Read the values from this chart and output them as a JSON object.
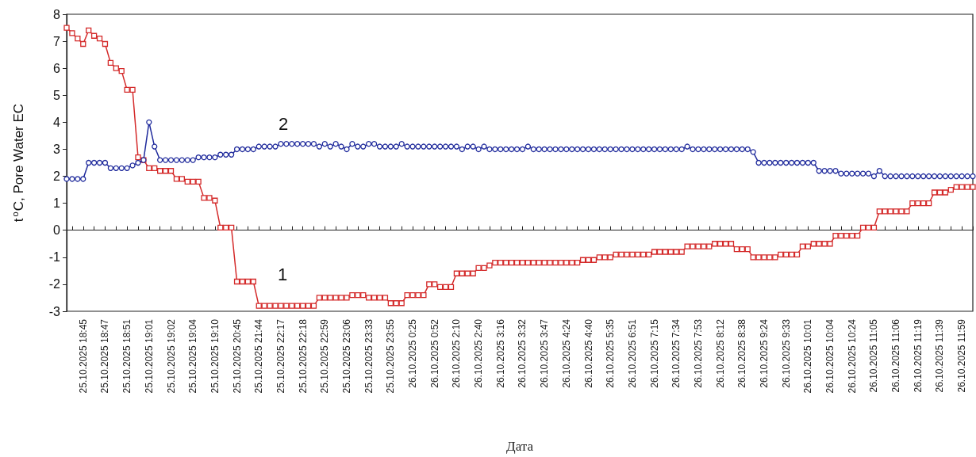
{
  "chart_data": {
    "type": "line",
    "xlabel": "Дата",
    "ylabel": "t$^{o}$C, Pore Water EC",
    "categories": [
      null,
      null,
      null,
      "25.10.2025 18:45",
      null,
      null,
      null,
      "25.10.2025 18:47",
      null,
      null,
      null,
      "25.10.2025 18:51",
      null,
      null,
      null,
      "25.10.2025 19:01",
      null,
      null,
      null,
      "25.10.2025 19:02",
      null,
      null,
      null,
      "25.10.2025 19:04",
      null,
      null,
      null,
      "25.10.2025 19:10",
      null,
      null,
      null,
      "25.10.2025 20:45",
      null,
      null,
      null,
      "25.10.2025 21:44",
      null,
      null,
      null,
      "25.10.2025 22:17",
      null,
      null,
      null,
      "25.10.2025 22:18",
      null,
      null,
      null,
      "25.10.2025 22:59",
      null,
      null,
      null,
      "25.10.2025 23:06",
      null,
      null,
      null,
      "25.10.2025 23:33",
      null,
      null,
      null,
      "25.10.2025 23:55",
      null,
      null,
      null,
      "26.10.2025 0:25",
      null,
      null,
      null,
      "26.10.2025 0:52",
      null,
      null,
      null,
      "26.10.2025 2:10",
      null,
      null,
      null,
      "26.10.2025 2:40",
      null,
      null,
      null,
      "26.10.2025 3:16",
      null,
      null,
      null,
      "26.10.2025 3:32",
      null,
      null,
      null,
      "26.10.2025 3:47",
      null,
      null,
      null,
      "26.10.2025 4:24",
      null,
      null,
      null,
      "26.10.2025 4:40",
      null,
      null,
      null,
      "26.10.2025 5:35",
      null,
      null,
      null,
      "26.10.2025 6:51",
      null,
      null,
      null,
      "26.10.2025 7:15",
      null,
      null,
      null,
      "26.10.2025 7:34",
      null,
      null,
      null,
      "26.10.2025 7:53",
      null,
      null,
      null,
      "26.10.2025 8:12",
      null,
      null,
      null,
      "26.10.2025 8:38",
      null,
      null,
      null,
      "26.10.2025 9:24",
      null,
      null,
      null,
      "26.10.2025 9:33",
      null,
      null,
      null,
      "26.10.2025 10:01",
      null,
      null,
      null,
      "26.10.2025 10:04",
      null,
      null,
      null,
      "26.10.2025 10:24",
      null,
      null,
      null,
      "26.10.2025 11:05",
      null,
      null,
      null,
      "26.10.2025 11:06",
      null,
      null,
      null,
      "26.10.2025 11:19",
      null,
      null,
      null,
      "26.10.2025 11:39",
      null,
      null,
      null,
      "26.10.2025 11:59",
      null,
      null
    ],
    "series": [
      {
        "color": "#d42a2a",
        "marker": "square",
        "values": [
          7.5,
          7.3,
          7.1,
          6.9,
          7.4,
          7.2,
          7.1,
          6.9,
          6.2,
          6.0,
          5.9,
          5.2,
          5.2,
          2.7,
          2.6,
          2.3,
          2.3,
          2.2,
          2.2,
          2.2,
          1.9,
          1.9,
          1.8,
          1.8,
          1.8,
          1.2,
          1.2,
          1.1,
          0.1,
          0.1,
          0.1,
          -1.9,
          -1.9,
          -1.9,
          -1.9,
          -2.8,
          -2.8,
          -2.8,
          -2.8,
          -2.8,
          -2.8,
          -2.8,
          -2.8,
          -2.8,
          -2.8,
          -2.8,
          -2.5,
          -2.5,
          -2.5,
          -2.5,
          -2.5,
          -2.5,
          -2.4,
          -2.4,
          -2.4,
          -2.5,
          -2.5,
          -2.5,
          -2.5,
          -2.7,
          -2.7,
          -2.7,
          -2.4,
          -2.4,
          -2.4,
          -2.4,
          -2.0,
          -2.0,
          -2.1,
          -2.1,
          -2.1,
          -1.6,
          -1.6,
          -1.6,
          -1.6,
          -1.4,
          -1.4,
          -1.3,
          -1.2,
          -1.2,
          -1.2,
          -1.2,
          -1.2,
          -1.2,
          -1.2,
          -1.2,
          -1.2,
          -1.2,
          -1.2,
          -1.2,
          -1.2,
          -1.2,
          -1.2,
          -1.2,
          -1.1,
          -1.1,
          -1.1,
          -1.0,
          -1.0,
          -1.0,
          -0.9,
          -0.9,
          -0.9,
          -0.9,
          -0.9,
          -0.9,
          -0.9,
          -0.8,
          -0.8,
          -0.8,
          -0.8,
          -0.8,
          -0.8,
          -0.6,
          -0.6,
          -0.6,
          -0.6,
          -0.6,
          -0.5,
          -0.5,
          -0.5,
          -0.5,
          -0.7,
          -0.7,
          -0.7,
          -1.0,
          -1.0,
          -1.0,
          -1.0,
          -1.0,
          -0.9,
          -0.9,
          -0.9,
          -0.9,
          -0.6,
          -0.6,
          -0.5,
          -0.5,
          -0.5,
          -0.5,
          -0.2,
          -0.2,
          -0.2,
          -0.2,
          -0.2,
          0.1,
          0.1,
          0.1,
          0.7,
          0.7,
          0.7,
          0.7,
          0.7,
          0.7,
          1.0,
          1.0,
          1.0,
          1.0,
          1.4,
          1.4,
          1.4,
          1.5,
          1.6,
          1.6,
          1.6,
          1.6
        ]
      },
      {
        "color": "#1f2a9c",
        "marker": "circle",
        "values": [
          1.9,
          1.9,
          1.9,
          1.9,
          2.5,
          2.5,
          2.5,
          2.5,
          2.3,
          2.3,
          2.3,
          2.3,
          2.4,
          2.5,
          2.6,
          4.0,
          3.1,
          2.6,
          2.6,
          2.6,
          2.6,
          2.6,
          2.6,
          2.6,
          2.7,
          2.7,
          2.7,
          2.7,
          2.8,
          2.8,
          2.8,
          3.0,
          3.0,
          3.0,
          3.0,
          3.1,
          3.1,
          3.1,
          3.1,
          3.2,
          3.2,
          3.2,
          3.2,
          3.2,
          3.2,
          3.2,
          3.1,
          3.2,
          3.1,
          3.2,
          3.1,
          3.0,
          3.2,
          3.1,
          3.1,
          3.2,
          3.2,
          3.1,
          3.1,
          3.1,
          3.1,
          3.2,
          3.1,
          3.1,
          3.1,
          3.1,
          3.1,
          3.1,
          3.1,
          3.1,
          3.1,
          3.1,
          3.0,
          3.1,
          3.1,
          3.0,
          3.1,
          3.0,
          3.0,
          3.0,
          3.0,
          3.0,
          3.0,
          3.0,
          3.1,
          3.0,
          3.0,
          3.0,
          3.0,
          3.0,
          3.0,
          3.0,
          3.0,
          3.0,
          3.0,
          3.0,
          3.0,
          3.0,
          3.0,
          3.0,
          3.0,
          3.0,
          3.0,
          3.0,
          3.0,
          3.0,
          3.0,
          3.0,
          3.0,
          3.0,
          3.0,
          3.0,
          3.0,
          3.1,
          3.0,
          3.0,
          3.0,
          3.0,
          3.0,
          3.0,
          3.0,
          3.0,
          3.0,
          3.0,
          3.0,
          2.9,
          2.5,
          2.5,
          2.5,
          2.5,
          2.5,
          2.5,
          2.5,
          2.5,
          2.5,
          2.5,
          2.5,
          2.2,
          2.2,
          2.2,
          2.2,
          2.1,
          2.1,
          2.1,
          2.1,
          2.1,
          2.1,
          2.0,
          2.2,
          2.0,
          2.0,
          2.0,
          2.0,
          2.0,
          2.0,
          2.0,
          2.0,
          2.0,
          2.0,
          2.0,
          2.0,
          2.0,
          2.0,
          2.0,
          2.0,
          2.0
        ]
      }
    ],
    "ylim": [
      -3,
      8
    ],
    "yticks": [
      -3,
      -2,
      -1,
      0,
      1,
      2,
      3,
      4,
      5,
      6,
      7,
      8
    ],
    "line_style": "solid",
    "annotations": [
      "2",
      "1"
    ]
  }
}
